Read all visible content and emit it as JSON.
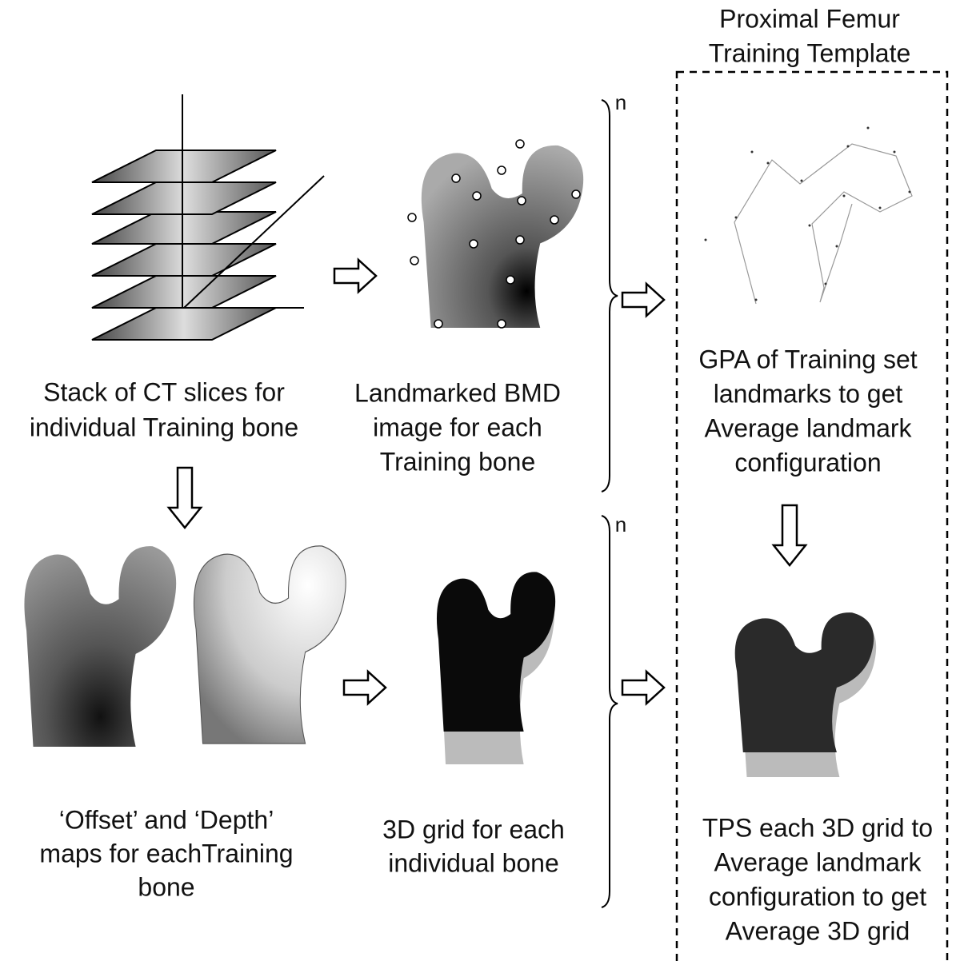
{
  "template_title": {
    "lines": [
      "Proximal Femur",
      "Training Template"
    ]
  },
  "captions": {
    "stack": {
      "lines": [
        "Stack of CT slices for",
        "individual Training bone"
      ]
    },
    "landmarked": {
      "lines": [
        "Landmarked BMD",
        "image for each",
        "Training bone"
      ]
    },
    "gpa": {
      "lines": [
        "GPA of Training set",
        "landmarks to get",
        "Average landmark",
        "configuration"
      ]
    },
    "maps": {
      "lines": [
        "‘Offset’ and ‘Depth’",
        "maps for eachTraining",
        "bone"
      ]
    },
    "grid": {
      "lines": [
        "3D grid for each",
        "individual bone"
      ]
    },
    "tps": {
      "lines": [
        "TPS each 3D grid to",
        "Average landmark",
        "configuration to get",
        "Average 3D grid"
      ]
    }
  },
  "brace_labels": [
    "n",
    "n"
  ]
}
